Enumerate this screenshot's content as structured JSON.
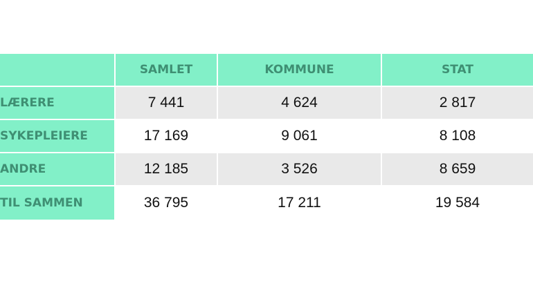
{
  "table": {
    "columns": [
      "",
      "SAMLET",
      "KOMMUNE",
      "STAT"
    ],
    "rows": [
      {
        "label": "LÆRERE",
        "values": [
          "7 441",
          "4 624",
          "2 817"
        ]
      },
      {
        "label": "SYKEPLEIERE",
        "values": [
          "17 169",
          "9 061",
          "8 108"
        ]
      },
      {
        "label": "ANDRE",
        "values": [
          "12 185",
          "3 526",
          "8 659"
        ]
      },
      {
        "label": "TIL SAMMEN",
        "values": [
          "36 795",
          "17 211",
          "19 584"
        ]
      }
    ]
  },
  "colors": {
    "header_bg": "#82f0c8",
    "header_text": "#3f8f73",
    "shaded_row": "#e9e9e9",
    "value_text": "#111111"
  }
}
